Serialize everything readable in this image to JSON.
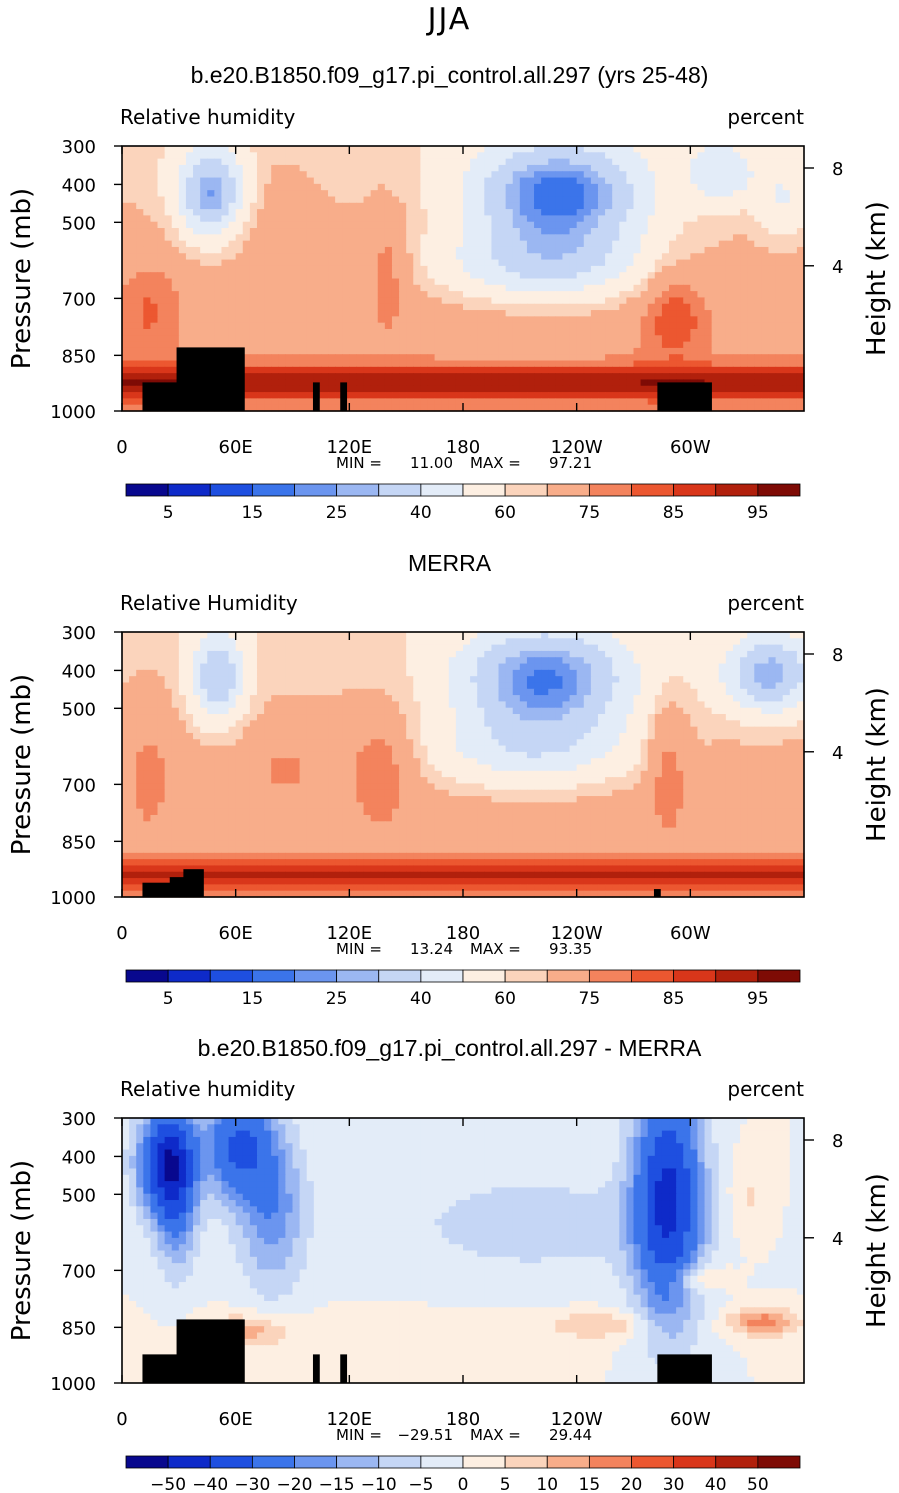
{
  "page_title": "JJA",
  "chart_data": [
    {
      "type": "heatmap",
      "title": "b.e20.B1850.f09_g17.pi_control.all.297 (yrs 25-48)",
      "left_label": "Relative humidity",
      "right_label": "percent",
      "ylabel": "Pressure (mb)",
      "ylabel_right": "Height (km)",
      "x_ticks": [
        "0",
        "60E",
        "120E",
        "180",
        "120W",
        "60W"
      ],
      "y_ticks": [
        "300",
        "400",
        "500",
        "700",
        "850",
        "1000"
      ],
      "y_ticks_right": [
        "8",
        "4"
      ],
      "stats": {
        "min_label": "MIN =",
        "min": "11.00",
        "max_label": "MAX =",
        "max": "97.21"
      },
      "colorbar_labels": [
        "5",
        "15",
        "25",
        "40",
        "60",
        "75",
        "85",
        "95"
      ],
      "colors": [
        "#08088e",
        "#0e2ac9",
        "#1e4fe0",
        "#3b74ea",
        "#6b95ef",
        "#9bb7f2",
        "#c5d6f5",
        "#e3ecf8",
        "#fdefe2",
        "#fbd4bc",
        "#f8ad8a",
        "#f3835d",
        "#ec5730",
        "#d9361a",
        "#b1200c",
        "#7e0b05"
      ],
      "masks": [
        "0.03,0.115,0.36",
        "0.08,0.10,0.8",
        "0.785,0.08,0.36",
        "0.28,0.01,0.36",
        "0.32,0.01,0.36"
      ]
    },
    {
      "type": "heatmap",
      "title": "MERRA",
      "left_label": "Relative Humidity",
      "right_label": "percent",
      "ylabel": "Pressure (mb)",
      "ylabel_right": "Height (km)",
      "x_ticks": [
        "0",
        "60E",
        "120E",
        "180",
        "120W",
        "60W"
      ],
      "y_ticks": [
        "300",
        "400",
        "500",
        "700",
        "850",
        "1000"
      ],
      "y_ticks_right": [
        "8",
        "4"
      ],
      "stats": {
        "min_label": "MIN =",
        "min": "13.24",
        "max_label": "MAX =",
        "max": "93.35"
      },
      "colorbar_labels": [
        "5",
        "15",
        "25",
        "40",
        "60",
        "75",
        "85",
        "95"
      ],
      "colors": [
        "#08088e",
        "#0e2ac9",
        "#1e4fe0",
        "#3b74ea",
        "#6b95ef",
        "#9bb7f2",
        "#c5d6f5",
        "#e3ecf8",
        "#fdefe2",
        "#fbd4bc",
        "#f8ad8a",
        "#f3835d",
        "#ec5730",
        "#d9361a",
        "#b1200c",
        "#7e0b05"
      ],
      "masks": [
        "0.03,0.05,0.18",
        "0.07,0.04,0.25",
        "0.09,0.03,0.35",
        "0.78,0.01,0.1"
      ]
    },
    {
      "type": "heatmap",
      "title": "b.e20.B1850.f09_g17.pi_control.all.297 - MERRA",
      "left_label": "Relative humidity",
      "right_label": "percent",
      "ylabel": "Pressure (mb)",
      "ylabel_right": "Height (km)",
      "x_ticks": [
        "0",
        "60E",
        "120E",
        "180",
        "120W",
        "60W"
      ],
      "y_ticks": [
        "300",
        "400",
        "500",
        "700",
        "850",
        "1000"
      ],
      "y_ticks_right": [
        "8",
        "4"
      ],
      "stats": {
        "min_label": "MIN =",
        "min": "−29.51",
        "max_label": "MAX =",
        "max": "29.44"
      },
      "colorbar_labels": [
        "−50",
        "−40",
        "−30",
        "−20",
        "−15",
        "−10",
        "−5",
        "0",
        "5",
        "10",
        "15",
        "20",
        "30",
        "40",
        "50"
      ],
      "colors": [
        "#08088e",
        "#0e2ac9",
        "#1e4fe0",
        "#3b74ea",
        "#6b95ef",
        "#9bb7f2",
        "#c5d6f5",
        "#e3ecf8",
        "#fdefe2",
        "#fbd4bc",
        "#f8ad8a",
        "#f3835d",
        "#ec5730",
        "#d9361a",
        "#b1200c",
        "#7e0b05"
      ],
      "masks": [
        "0.03,0.115,0.36",
        "0.08,0.10,0.8",
        "0.785,0.08,0.36",
        "0.28,0.01,0.36",
        "0.32,0.01,0.36"
      ]
    }
  ]
}
